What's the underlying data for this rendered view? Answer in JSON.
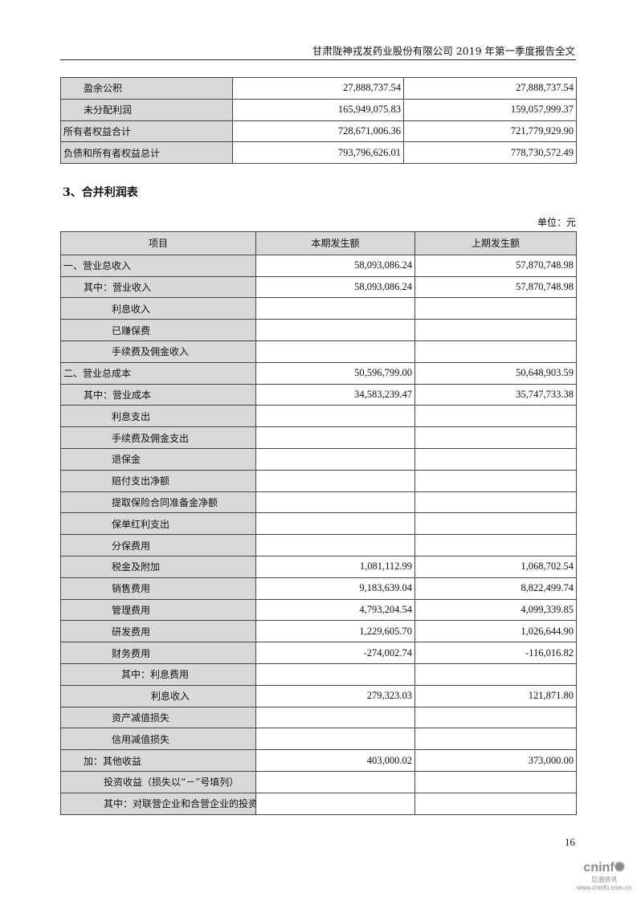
{
  "header": {
    "title": "甘肃陇神戎发药业股份有限公司 2019 年第一季度报告全文"
  },
  "balance_tail": [
    {
      "label": "盈余公积",
      "indent": 1,
      "current": "27,888,737.54",
      "previous": "27,888,737.54"
    },
    {
      "label": "未分配利润",
      "indent": 1,
      "current": "165,949,075.83",
      "previous": "159,057,999.37"
    },
    {
      "label": "所有者权益合计",
      "indent": 0,
      "current": "728,671,006.36",
      "previous": "721,779,929.90"
    },
    {
      "label": "负债和所有者权益总计",
      "indent": 0,
      "current": "793,796,626.01",
      "previous": "778,730,572.49"
    }
  ],
  "section_title": "3、合并利润表",
  "unit": "单位：元",
  "income_table": {
    "columns": [
      "项目",
      "本期发生额",
      "上期发生额"
    ],
    "rows": [
      {
        "label": "一、营业总收入",
        "indent": 0,
        "current": "58,093,086.24",
        "previous": "57,870,748.98"
      },
      {
        "label": "其中：营业收入",
        "indent": 1,
        "current": "58,093,086.24",
        "previous": "57,870,748.98"
      },
      {
        "label": "利息收入",
        "indent": 2,
        "current": "",
        "previous": ""
      },
      {
        "label": "已赚保费",
        "indent": 2,
        "current": "",
        "previous": ""
      },
      {
        "label": "手续费及佣金收入",
        "indent": 2,
        "current": "",
        "previous": ""
      },
      {
        "label": "二、营业总成本",
        "indent": 0,
        "current": "50,596,799.00",
        "previous": "50,648,903.59"
      },
      {
        "label": "其中：营业成本",
        "indent": 1,
        "current": "34,583,239.47",
        "previous": "35,747,733.38"
      },
      {
        "label": "利息支出",
        "indent": 2,
        "current": "",
        "previous": ""
      },
      {
        "label": "手续费及佣金支出",
        "indent": 2,
        "current": "",
        "previous": ""
      },
      {
        "label": "退保金",
        "indent": 2,
        "current": "",
        "previous": ""
      },
      {
        "label": "赔付支出净额",
        "indent": 2,
        "current": "",
        "previous": ""
      },
      {
        "label": "提取保险合同准备金净额",
        "indent": 2,
        "current": "",
        "previous": ""
      },
      {
        "label": "保单红利支出",
        "indent": 2,
        "current": "",
        "previous": ""
      },
      {
        "label": "分保费用",
        "indent": 2,
        "current": "",
        "previous": ""
      },
      {
        "label": "税金及附加",
        "indent": 2,
        "current": "1,081,112.99",
        "previous": "1,068,702.54"
      },
      {
        "label": "销售费用",
        "indent": 2,
        "current": "9,183,639.04",
        "previous": "8,822,499.74"
      },
      {
        "label": "管理费用",
        "indent": 2,
        "current": "4,793,204.54",
        "previous": "4,099,339.85"
      },
      {
        "label": "研发费用",
        "indent": 2,
        "current": "1,229,605.70",
        "previous": "1,026,644.90"
      },
      {
        "label": "财务费用",
        "indent": 2,
        "current": "-274,002.74",
        "previous": "-116,016.82"
      },
      {
        "label": "其中：利息费用",
        "indent": 3,
        "current": "",
        "previous": ""
      },
      {
        "label": "利息收入",
        "indent": 4,
        "current": "279,323.03",
        "previous": "121,871.80"
      },
      {
        "label": "资产减值损失",
        "indent": 2,
        "current": "",
        "previous": ""
      },
      {
        "label": "信用减值损失",
        "indent": 2,
        "current": "",
        "previous": ""
      },
      {
        "label": "加：其他收益",
        "indent": 1,
        "current": "403,000.02",
        "previous": "373,000.00"
      },
      {
        "label": "投资收益（损失以“－”号填列）",
        "indent": 5,
        "current": "",
        "previous": ""
      },
      {
        "label": "其中：对联营企业和合营企业的投资",
        "indent": 5,
        "current": "",
        "previous": ""
      }
    ]
  },
  "page_number": "16",
  "watermark": {
    "brand": "cninf",
    "cn": "巨潮资讯",
    "url": "www.cninfo.com.cn"
  }
}
